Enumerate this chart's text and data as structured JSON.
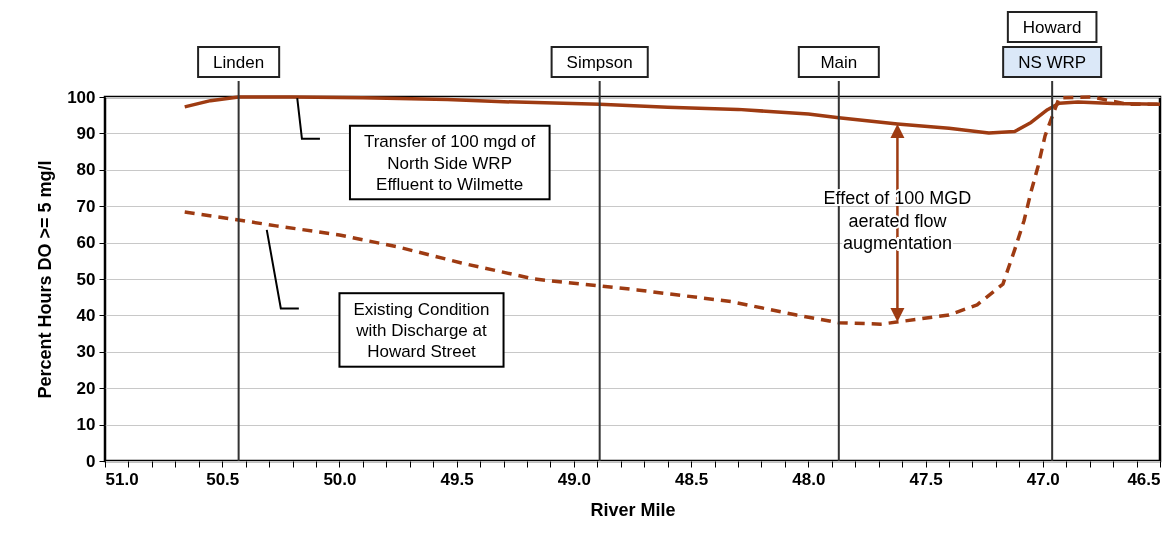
{
  "chart_data": {
    "type": "line",
    "xlabel": "River Mile",
    "ylabel": "Percent Hours DO >= 5 mg/l",
    "xlim": [
      51.0,
      46.5
    ],
    "ylim": [
      0,
      100
    ],
    "xticks": [
      {
        "value": 51,
        "label": "51.0"
      },
      {
        "value": 50.9,
        "label": null
      },
      {
        "value": 50.8,
        "label": null
      },
      {
        "value": 50.7,
        "label": null
      },
      {
        "value": 50.6,
        "label": null
      },
      50.5,
      {
        "value": 50.4,
        "label": null
      },
      {
        "value": 50.3,
        "label": null
      },
      {
        "value": 50.2,
        "label": null
      },
      {
        "value": 50.1,
        "label": null
      },
      {
        "value": 50,
        "label": "50.0"
      },
      {
        "value": 49.9,
        "label": null
      },
      {
        "value": 49.8,
        "label": null
      },
      {
        "value": 49.7,
        "label": null
      },
      {
        "value": 49.6,
        "label": null
      },
      49.5,
      {
        "value": 49.4,
        "label": null
      },
      {
        "value": 49.3,
        "label": null
      },
      {
        "value": 49.2,
        "label": null
      },
      {
        "value": 49.1,
        "label": null
      },
      {
        "value": 49,
        "label": "49.0"
      },
      {
        "value": 48.9,
        "label": null
      },
      {
        "value": 48.8,
        "label": null
      },
      {
        "value": 48.7,
        "label": null
      },
      {
        "value": 48.6,
        "label": null
      },
      48.5,
      {
        "value": 48.4,
        "label": null
      },
      {
        "value": 48.3,
        "label": null
      },
      {
        "value": 48.2,
        "label": null
      },
      {
        "value": 48.1,
        "label": null
      },
      {
        "value": 48,
        "label": "48.0"
      },
      {
        "value": 47.9,
        "label": null
      },
      {
        "value": 47.8,
        "label": null
      },
      {
        "value": 47.7,
        "label": null
      },
      {
        "value": 47.6,
        "label": null
      },
      47.5,
      {
        "value": 47.4,
        "label": null
      },
      {
        "value": 47.3,
        "label": null
      },
      {
        "value": 47.2,
        "label": null
      },
      {
        "value": 47.1,
        "label": null
      },
      {
        "value": 47,
        "label": "47.0"
      },
      {
        "value": 46.9,
        "label": null
      },
      {
        "value": 46.8,
        "label": null
      },
      {
        "value": 46.7,
        "label": null
      },
      {
        "value": 46.6,
        "label": null
      },
      46.5
    ],
    "yticks": [
      0,
      10,
      20,
      30,
      40,
      50,
      60,
      70,
      80,
      90,
      100
    ],
    "grid": "y",
    "series": [
      {
        "name": "Transfer of 100 mgd of\nNorth Side WRP\nEffluent to Wilmette",
        "color": "#9e3b12",
        "line_style": "solid",
        "x": [
          50.66,
          50.55,
          50.43,
          50.2,
          49.9,
          49.54,
          49.3,
          48.89,
          48.6,
          48.3,
          48.0,
          47.87,
          47.62,
          47.4,
          47.23,
          47.12,
          47.05,
          46.98,
          46.93,
          46.85,
          46.7,
          46.5
        ],
        "values": [
          97.3,
          99,
          100,
          100,
          99.8,
          99.3,
          98.7,
          98,
          97.2,
          96.6,
          95.3,
          94.3,
          92.6,
          91.4,
          90.1,
          90.5,
          93,
          96.5,
          98.3,
          98.6,
          98.2,
          98
        ]
      },
      {
        "name": "Existing Condition\nwith Discharge at\nHoward Street",
        "color": "#9e3b12",
        "line_style": "dashed",
        "x": [
          50.66,
          50.43,
          50.27,
          50.0,
          49.75,
          49.48,
          49.17,
          48.89,
          48.73,
          48.33,
          48.05,
          47.87,
          47.69,
          47.4,
          47.28,
          47.17,
          47.12,
          47.08,
          47.05,
          47.02,
          46.99,
          46.93,
          46.79,
          46.64,
          46.5
        ],
        "values": [
          68.4,
          66.2,
          64.6,
          62.1,
          58.8,
          54.4,
          50,
          48.1,
          47,
          43.8,
          40.1,
          38,
          37.6,
          40.1,
          42.9,
          48.6,
          58,
          66,
          74,
          81,
          89.4,
          99.8,
          100,
          98,
          98
        ]
      }
    ],
    "ref_lines": [
      {
        "axis": "x",
        "value": 50.43,
        "label": "Linden",
        "color": "#333333"
      },
      {
        "axis": "x",
        "value": 48.89,
        "label": "Simpson",
        "color": "#333333"
      },
      {
        "axis": "x",
        "value": 47.87,
        "label": "Main",
        "color": "#333333"
      },
      {
        "axis": "x",
        "value": 46.96,
        "label": "Howard\nNS WRP",
        "color": "#333333"
      }
    ],
    "annotations": [
      "Effect of 100 MGD\naerated flow\naugmentation"
    ]
  }
}
